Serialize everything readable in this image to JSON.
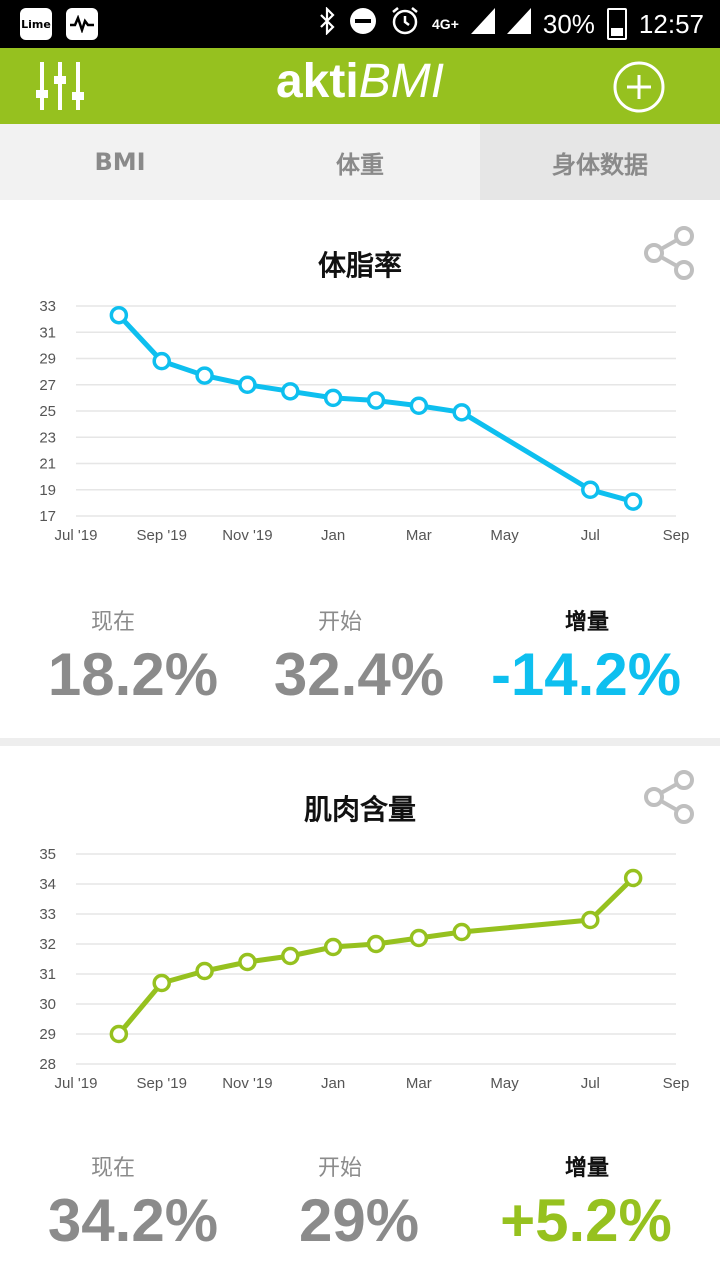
{
  "status_bar": {
    "left_icons": [
      "lime-icon",
      "activity-icon"
    ],
    "right_icons": [
      "bluetooth-icon",
      "do-not-disturb-icon",
      "alarm-icon",
      "4g-icon",
      "signal-icon",
      "signal-icon"
    ],
    "network": "4G+",
    "battery": "30%",
    "time": "12:57",
    "lime_label": "Lime"
  },
  "app": {
    "brand_bold": "akti",
    "brand_italic": "BMI",
    "color_primary": "#96c11f",
    "menu_icon": "sliders-icon",
    "add_icon": "plus-circle-icon"
  },
  "tabs": [
    {
      "label": "BMI",
      "active": false
    },
    {
      "label": "体重",
      "active": false
    },
    {
      "label": "身体数据",
      "active": true
    }
  ],
  "fat_card": {
    "title": "体脂率",
    "share_icon": "share-icon",
    "current_label": "现在",
    "current_value": "18.2%",
    "start_label": "开始",
    "start_value": "32.4%",
    "change_label": "增量",
    "change_value": "-14.2%",
    "change_color": "#0ebfef"
  },
  "muscle_card": {
    "title": "肌肉含量",
    "share_icon": "share-icon",
    "current_label": "现在",
    "current_value": "34.2%",
    "start_label": "开始",
    "start_value": "29%",
    "change_label": "增量",
    "change_value": "+5.2%",
    "change_color": "#96c11f"
  },
  "chart_data": [
    {
      "type": "line",
      "title": "体脂率",
      "color": "#0ebfef",
      "x_ticks": [
        "Jul '19",
        "Sep '19",
        "Nov '19",
        "Jan",
        "Mar",
        "May",
        "Jul",
        "Sep"
      ],
      "y_ticks": [
        "17",
        "19",
        "21",
        "23",
        "25",
        "27",
        "29",
        "31",
        "33"
      ],
      "xlim": [
        0,
        14
      ],
      "ylim": [
        17,
        33
      ],
      "x": [
        1.0,
        2.0,
        3.0,
        4.0,
        5.0,
        6.0,
        7.0,
        8.0,
        9.0,
        12.0,
        13.0
      ],
      "y": [
        32.3,
        28.8,
        27.7,
        27.0,
        26.5,
        26.0,
        25.8,
        25.4,
        24.9,
        19.0,
        18.1
      ],
      "grid": true
    },
    {
      "type": "line",
      "title": "肌肉含量",
      "color": "#96c11f",
      "x_ticks": [
        "Jul '19",
        "Sep '19",
        "Nov '19",
        "Jan",
        "Mar",
        "May",
        "Jul",
        "Sep"
      ],
      "y_ticks": [
        "28",
        "29",
        "30",
        "31",
        "32",
        "33",
        "34",
        "35"
      ],
      "xlim": [
        0,
        14
      ],
      "ylim": [
        28,
        35
      ],
      "x": [
        1.0,
        2.0,
        3.0,
        4.0,
        5.0,
        6.0,
        7.0,
        8.0,
        9.0,
        12.0,
        13.0
      ],
      "y": [
        29.0,
        30.7,
        31.1,
        31.4,
        31.6,
        31.9,
        32.0,
        32.2,
        32.4,
        32.8,
        34.2
      ],
      "grid": true
    }
  ]
}
